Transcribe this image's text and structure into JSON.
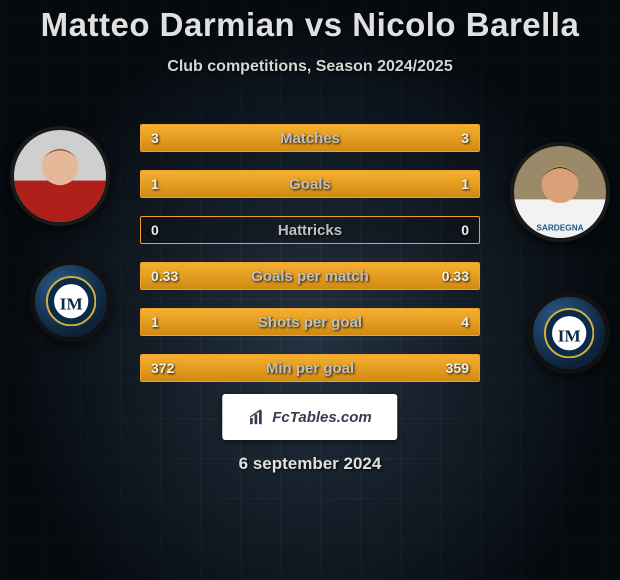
{
  "title": "Matteo Darmian vs Nicolo Barella",
  "subtitle": "Club competitions, Season 2024/2025",
  "date": "6 september 2024",
  "brand": {
    "label": "FcTables.com"
  },
  "colors": {
    "bar_fill_top": "#f5b030",
    "bar_fill_bottom": "#d18a10",
    "bar_border": "#f0a030",
    "title_color": "#e0e0e0",
    "subtitle_color": "#d5d5d5",
    "label_color": "#c0c0c0",
    "value_color": "#eeeeee",
    "background": "#0a1420",
    "brand_bg": "#ffffff",
    "brand_fg": "#3a3a50"
  },
  "stats": [
    {
      "label": "Matches",
      "left_val": "3",
      "right_val": "3",
      "left_pct": 50,
      "right_pct": 50
    },
    {
      "label": "Goals",
      "left_val": "1",
      "right_val": "1",
      "left_pct": 50,
      "right_pct": 50
    },
    {
      "label": "Hattricks",
      "left_val": "0",
      "right_val": "0",
      "left_pct": 0,
      "right_pct": 0
    },
    {
      "label": "Goals per match",
      "left_val": "0.33",
      "right_val": "0.33",
      "left_pct": 50,
      "right_pct": 50
    },
    {
      "label": "Shots per goal",
      "left_val": "1",
      "right_val": "4",
      "left_pct": 20,
      "right_pct": 80
    },
    {
      "label": "Min per goal",
      "left_val": "372",
      "right_val": "359",
      "left_pct": 51,
      "right_pct": 49
    }
  ],
  "players": {
    "left": {
      "name": "Matteo Darmian",
      "club": "Inter"
    },
    "right": {
      "name": "Nicolo Barella",
      "club": "Inter"
    }
  }
}
